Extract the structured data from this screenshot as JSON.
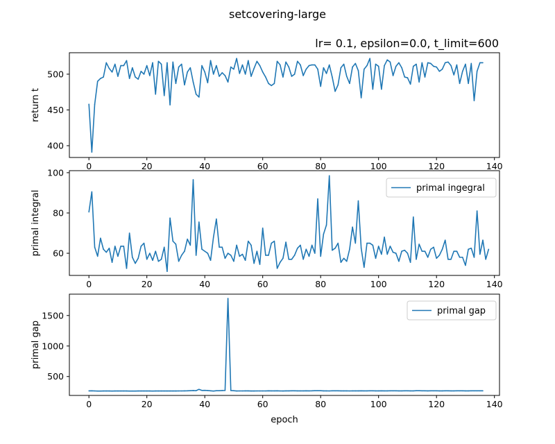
{
  "figure": {
    "title": "setcovering-large",
    "subtitle": "lr= 0.1, epsilon=0.0, t_limit=600"
  },
  "colors": {
    "line": "#1f77b4",
    "axes": "#000000",
    "legend_edge": "#cccccc"
  },
  "chart_data": [
    {
      "type": "line",
      "ylabel": "return t",
      "xlim": [
        -6.75,
        141.75
      ],
      "ylim": [
        383.5,
        530
      ],
      "xticks": [
        "0",
        "20",
        "40",
        "60",
        "80",
        "100",
        "120",
        "140"
      ],
      "yticks": [
        "400",
        "450",
        "500"
      ],
      "xtick_values": [
        0,
        20,
        40,
        60,
        80,
        100,
        120,
        140
      ],
      "ytick_values": [
        400,
        450,
        500
      ],
      "legend": null,
      "series": [
        {
          "name": "",
          "x_start": 0,
          "values": [
            458,
            391,
            458,
            490,
            494,
            496,
            516,
            508,
            503,
            514,
            497,
            512,
            512,
            519,
            494,
            509,
            496,
            493,
            504,
            500,
            512,
            498,
            516,
            472,
            518,
            514,
            470,
            516,
            457,
            517,
            487,
            510,
            514,
            485,
            503,
            509,
            489,
            472,
            468,
            512,
            503,
            488,
            519,
            500,
            512,
            497,
            502,
            498,
            489,
            510,
            507,
            522,
            501,
            513,
            500,
            519,
            497,
            508,
            518,
            512,
            503,
            496,
            487,
            484,
            487,
            518,
            513,
            496,
            517,
            510,
            497,
            500,
            518,
            513,
            498,
            507,
            512,
            513,
            513,
            507,
            483,
            509,
            501,
            513,
            496,
            476,
            485,
            509,
            514,
            497,
            487,
            510,
            515,
            505,
            467,
            507,
            512,
            522,
            479,
            514,
            511,
            479,
            512,
            520,
            517,
            498,
            511,
            516,
            509,
            496,
            495,
            486,
            511,
            514,
            489,
            516,
            496,
            516,
            515,
            511,
            510,
            504,
            507,
            516,
            517,
            512,
            499,
            513,
            487,
            504,
            514,
            487,
            515,
            463,
            504,
            516,
            516
          ]
        }
      ]
    },
    {
      "type": "line",
      "ylabel": "primal integral",
      "xlim": [
        -6.75,
        141.75
      ],
      "ylim": [
        49,
        101
      ],
      "xticks": [
        "0",
        "20",
        "40",
        "60",
        "80",
        "100",
        "120",
        "140"
      ],
      "yticks": [
        "60",
        "80",
        "100"
      ],
      "xtick_values": [
        0,
        20,
        40,
        60,
        80,
        100,
        120,
        140
      ],
      "ytick_values": [
        60,
        80,
        100
      ],
      "legend": "primal ingegral",
      "series": [
        {
          "name": "primal ingegral",
          "x_start": 0,
          "values": [
            80.5,
            90.5,
            63,
            58.5,
            67.5,
            62,
            60.5,
            62.5,
            55.5,
            63.5,
            58.5,
            63.5,
            63.5,
            52.5,
            70,
            58,
            55,
            57.5,
            63.5,
            65,
            57,
            60,
            56.5,
            61,
            56,
            57,
            63,
            51,
            77.5,
            66,
            64.5,
            56,
            59,
            61,
            67,
            64,
            96.5,
            59,
            75.5,
            62,
            61,
            60,
            56.5,
            68,
            77,
            63,
            63,
            57.5,
            60,
            59,
            56,
            64,
            58.5,
            59.5,
            56.5,
            66,
            64,
            55,
            61,
            54.5,
            72.5,
            59,
            59,
            65,
            66,
            52.5,
            55.5,
            57.5,
            65.5,
            57,
            57,
            59,
            62.5,
            64,
            57,
            62,
            58.5,
            64,
            60,
            87,
            58.5,
            69.5,
            74,
            98.5,
            61.5,
            62.5,
            65,
            55.5,
            57.5,
            56,
            62,
            73,
            65,
            86,
            62.5,
            53,
            65,
            65,
            64,
            57.5,
            63.5,
            59.5,
            68,
            59.5,
            63.5,
            60.5,
            60,
            56,
            61,
            61.5,
            60,
            55.5,
            78,
            57,
            64.5,
            61,
            61,
            58,
            62,
            63,
            57.5,
            59,
            62,
            66.5,
            57,
            57,
            61,
            61,
            58,
            58,
            54,
            62,
            62.5,
            58,
            81,
            59.5,
            66.5,
            57,
            62
          ]
        }
      ]
    },
    {
      "type": "line",
      "ylabel": "primal gap",
      "xlabel": "epoch",
      "xlim": [
        -6.75,
        141.75
      ],
      "ylim": [
        190,
        1850
      ],
      "xticks": [
        "0",
        "20",
        "40",
        "60",
        "80",
        "100",
        "120",
        "140"
      ],
      "yticks": [
        "500",
        "1000",
        "1500"
      ],
      "xtick_values": [
        0,
        20,
        40,
        60,
        80,
        100,
        120,
        140
      ],
      "ytick_values": [
        500,
        1000,
        1500
      ],
      "legend": "primal gap",
      "series": [
        {
          "name": "primal gap",
          "x_start": 0,
          "values": [
            265,
            266,
            264,
            262,
            262,
            263,
            263,
            263,
            262,
            263,
            263,
            263,
            263,
            263,
            262,
            262,
            262,
            263,
            263,
            263,
            263,
            263,
            262,
            263,
            263,
            263,
            263,
            263,
            263,
            263,
            263,
            264,
            264,
            265,
            266,
            268,
            270,
            268,
            290,
            272,
            273,
            270,
            266,
            262,
            267,
            268,
            270,
            272,
            1780,
            270,
            267,
            263,
            264,
            264,
            265,
            265,
            263,
            263,
            264,
            264,
            264,
            264,
            266,
            265,
            265,
            266,
            264,
            263,
            265,
            265,
            266,
            266,
            265,
            265,
            265,
            266,
            265,
            266,
            268,
            268,
            268,
            265,
            265,
            264,
            266,
            266,
            266,
            265,
            265,
            265,
            264,
            265,
            265,
            265,
            266,
            265,
            265,
            266,
            266,
            265,
            265,
            266,
            265,
            265,
            266,
            266,
            266,
            265,
            265,
            266,
            266,
            265,
            265,
            267,
            268,
            266,
            266,
            265,
            266,
            266,
            266,
            265,
            265,
            266,
            266,
            265,
            265,
            266,
            266,
            266,
            265,
            265,
            266,
            266,
            266,
            266,
            266
          ]
        }
      ]
    }
  ]
}
